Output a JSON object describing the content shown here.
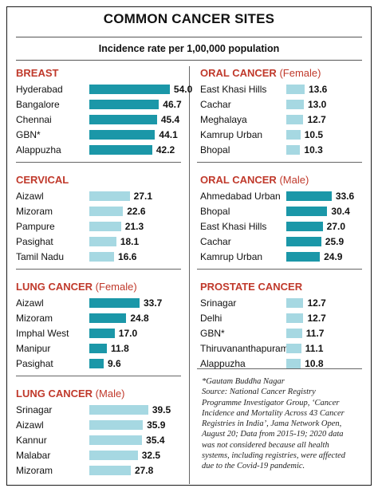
{
  "title": "COMMON CANCER SITES",
  "subtitle": "Incidence rate per 1,00,000 population",
  "colors": {
    "dark_bar": "#1b97a8",
    "light_bar": "#a6d8e2",
    "heading": "#c0392b"
  },
  "footnote": {
    "lines": [
      "*Gautam Buddha Nagar",
      "Source: National Cancer Registry",
      "Programme Investigator Group, ‘Cancer",
      "Incidence and Mortality Across 43 Cancer",
      "Registries in India’, Jama Network Open,",
      "August 20; Data from 2015-19; 2020 data",
      "was not considered because all health",
      "systems, including registries,  were affected",
      "due to the Covid-19 pandemic."
    ]
  },
  "chart_data": [
    {
      "type": "bar",
      "title": "BREAST",
      "title_suffix": "",
      "categories": [
        "Hyderabad",
        "Bangalore",
        "Chennai",
        "GBN*",
        "Alappuzha"
      ],
      "values": [
        54.0,
        46.7,
        45.4,
        44.1,
        42.2
      ],
      "value_labels": [
        "54.0",
        "46.7",
        "45.4",
        "44.1",
        "42.2"
      ],
      "bar_color": "dark"
    },
    {
      "type": "bar",
      "title": "CERVICAL",
      "title_suffix": "",
      "categories": [
        "Aizawl",
        "Mizoram",
        "Pampure",
        "Pasighat",
        "Tamil Nadu"
      ],
      "values": [
        27.1,
        22.6,
        21.3,
        18.1,
        16.6
      ],
      "value_labels": [
        "27.1",
        "22.6",
        "21.3",
        "18.1",
        "16.6"
      ],
      "bar_color": "light"
    },
    {
      "type": "bar",
      "title": "LUNG CANCER",
      "title_suffix": " (Female)",
      "categories": [
        "Aizawl",
        "Mizoram",
        "Imphal West",
        "Manipur",
        "Pasighat"
      ],
      "values": [
        33.7,
        24.8,
        17.0,
        11.8,
        9.6
      ],
      "value_labels": [
        "33.7",
        "24.8",
        "17.0",
        "11.8",
        "9.6"
      ],
      "bar_color": "dark"
    },
    {
      "type": "bar",
      "title": "LUNG CANCER",
      "title_suffix": " (Male)",
      "categories": [
        "Srinagar",
        "Aizawl",
        "Kannur",
        "Malabar",
        "Mizoram"
      ],
      "values": [
        39.5,
        35.9,
        35.4,
        32.5,
        27.8
      ],
      "value_labels": [
        "39.5",
        "35.9",
        "35.4",
        "32.5",
        "27.8"
      ],
      "bar_color": "light"
    },
    {
      "type": "bar",
      "title": "ORAL CANCER",
      "title_suffix": " (Female)",
      "categories": [
        "East Khasi Hills",
        "Cachar",
        "Meghalaya",
        "Kamrup Urban",
        "Bhopal"
      ],
      "values": [
        13.6,
        13.0,
        12.7,
        10.5,
        10.3
      ],
      "value_labels": [
        "13.6",
        "13.0",
        "12.7",
        "10.5",
        "10.3"
      ],
      "bar_color": "light"
    },
    {
      "type": "bar",
      "title": "ORAL CANCER",
      "title_suffix": " (Male)",
      "categories": [
        "Ahmedabad Urban",
        "Bhopal",
        "East Khasi Hills",
        "Cachar",
        "Kamrup Urban"
      ],
      "values": [
        33.6,
        30.4,
        27.0,
        25.9,
        24.9
      ],
      "value_labels": [
        "33.6",
        "30.4",
        "27.0",
        "25.9",
        "24.9"
      ],
      "bar_color": "dark"
    },
    {
      "type": "bar",
      "title": "PROSTATE CANCER",
      "title_suffix": "",
      "categories": [
        "Srinagar",
        "Delhi",
        "GBN*",
        "Thiruvananthapuram",
        "Alappuzha"
      ],
      "values": [
        12.7,
        12.7,
        11.7,
        11.1,
        10.8
      ],
      "value_labels": [
        "12.7",
        "12.7",
        "11.7",
        "11.1",
        "10.8"
      ],
      "bar_color": "light"
    }
  ]
}
